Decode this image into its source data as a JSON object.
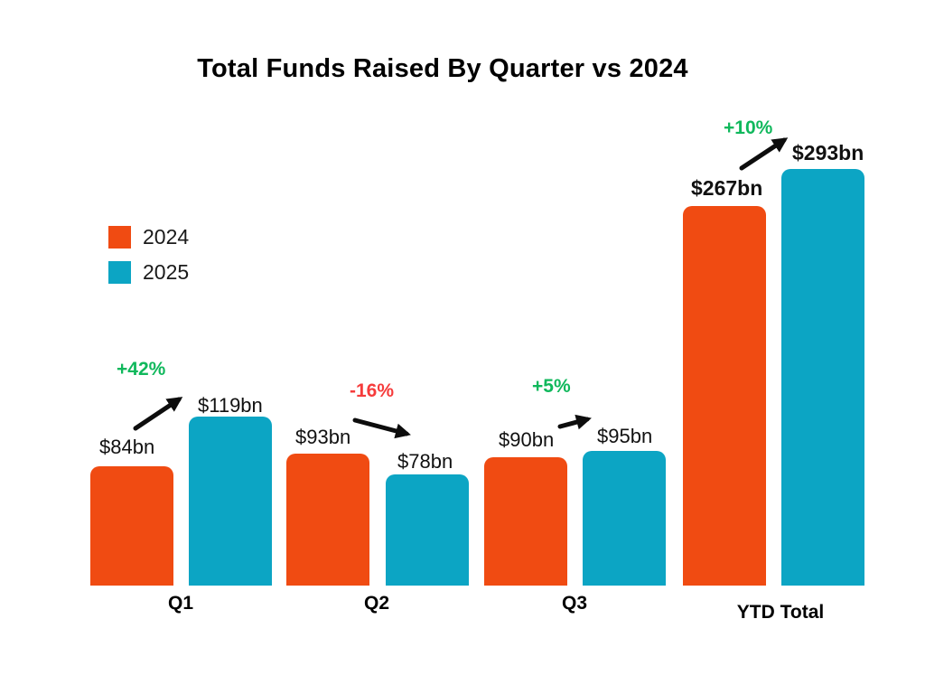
{
  "chart_data": {
    "type": "bar",
    "title": "Total Funds Raised By Quarter vs 2024",
    "unit": "USD billions",
    "categories": [
      "Q1",
      "Q2",
      "Q3",
      "YTD Total"
    ],
    "series": [
      {
        "name": "2024",
        "color": "#F04B12",
        "values": [
          84,
          93,
          90,
          267
        ],
        "value_labels": [
          "$84bn",
          "$93bn",
          "$90bn",
          "$267bn"
        ]
      },
      {
        "name": "2025",
        "color": "#0CA5C4",
        "values": [
          119,
          78,
          95,
          293
        ],
        "value_labels": [
          "$119bn",
          "$78bn",
          "$95bn",
          "$293bn"
        ]
      }
    ],
    "changes": [
      {
        "category": "Q1",
        "label": "+42%",
        "direction": "up",
        "color": "#10B85C"
      },
      {
        "category": "Q2",
        "label": "-16%",
        "direction": "down",
        "color": "#F63C3C"
      },
      {
        "category": "Q3",
        "label": "+5%",
        "direction": "up",
        "color": "#10B85C"
      },
      {
        "category": "YTD Total",
        "label": "+10%",
        "direction": "up",
        "color": "#10B85C"
      }
    ],
    "arrow_color": "#0d0d0d",
    "background": "#FFFFFF",
    "grid": false,
    "legend_position": "upper-left",
    "ylim": [
      0,
      300
    ]
  }
}
